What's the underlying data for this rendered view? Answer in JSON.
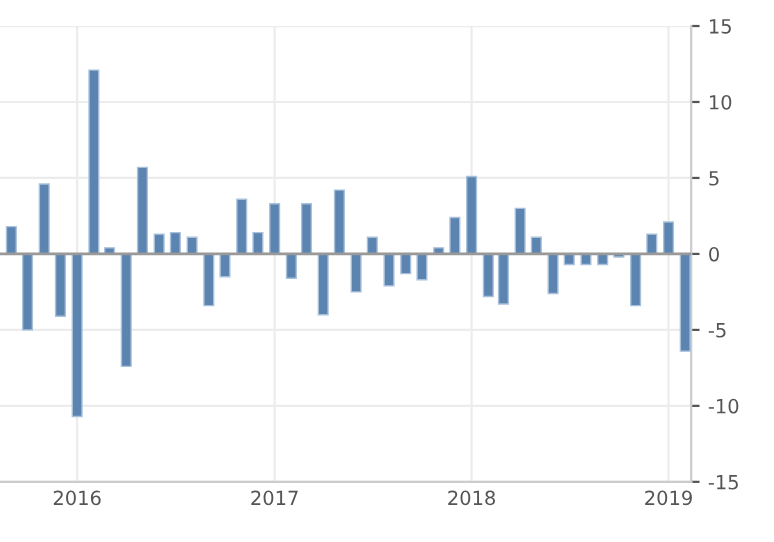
{
  "chart_data": {
    "type": "bar",
    "x": [
      "2015-09",
      "2015-10",
      "2015-11",
      "2015-12",
      "2016-01",
      "2016-02",
      "2016-03",
      "2016-04",
      "2016-05",
      "2016-06",
      "2016-07",
      "2016-08",
      "2016-09",
      "2016-10",
      "2016-11",
      "2016-12",
      "2017-01",
      "2017-02",
      "2017-03",
      "2017-04",
      "2017-05",
      "2017-06",
      "2017-07",
      "2017-08",
      "2017-09",
      "2017-10",
      "2017-11",
      "2017-12",
      "2018-01",
      "2018-02",
      "2018-03",
      "2018-04",
      "2018-05",
      "2018-06",
      "2018-07",
      "2018-08",
      "2018-09",
      "2018-10",
      "2018-11",
      "2018-12",
      "2019-01",
      "2019-02"
    ],
    "values": [
      1.8,
      -5.0,
      4.6,
      -4.1,
      -10.7,
      12.1,
      0.4,
      -7.4,
      5.7,
      1.3,
      1.4,
      1.1,
      -3.4,
      -1.5,
      3.6,
      1.4,
      3.3,
      -1.6,
      3.3,
      -4.0,
      4.2,
      -2.5,
      1.1,
      -2.1,
      -1.3,
      -1.7,
      0.4,
      2.4,
      5.1,
      -2.8,
      -3.3,
      3.0,
      1.1,
      -2.6,
      -0.7,
      -0.7,
      -0.7,
      -0.2,
      -3.4,
      1.3,
      2.1,
      -6.4
    ],
    "color": "#5b84b1",
    "xlim": [
      "2015-08-11",
      "2019-02-12"
    ],
    "xticks": [
      {
        "value": "2016-01-01",
        "label": "2016"
      },
      {
        "value": "2017-01-01",
        "label": "2017"
      },
      {
        "value": "2018-01-01",
        "label": "2018"
      },
      {
        "value": "2019-01-01",
        "label": "2019"
      }
    ],
    "ylim": [
      -15,
      15
    ],
    "yticks": [
      -15,
      -10,
      -5,
      0,
      5,
      10,
      15
    ],
    "grid": true
  }
}
